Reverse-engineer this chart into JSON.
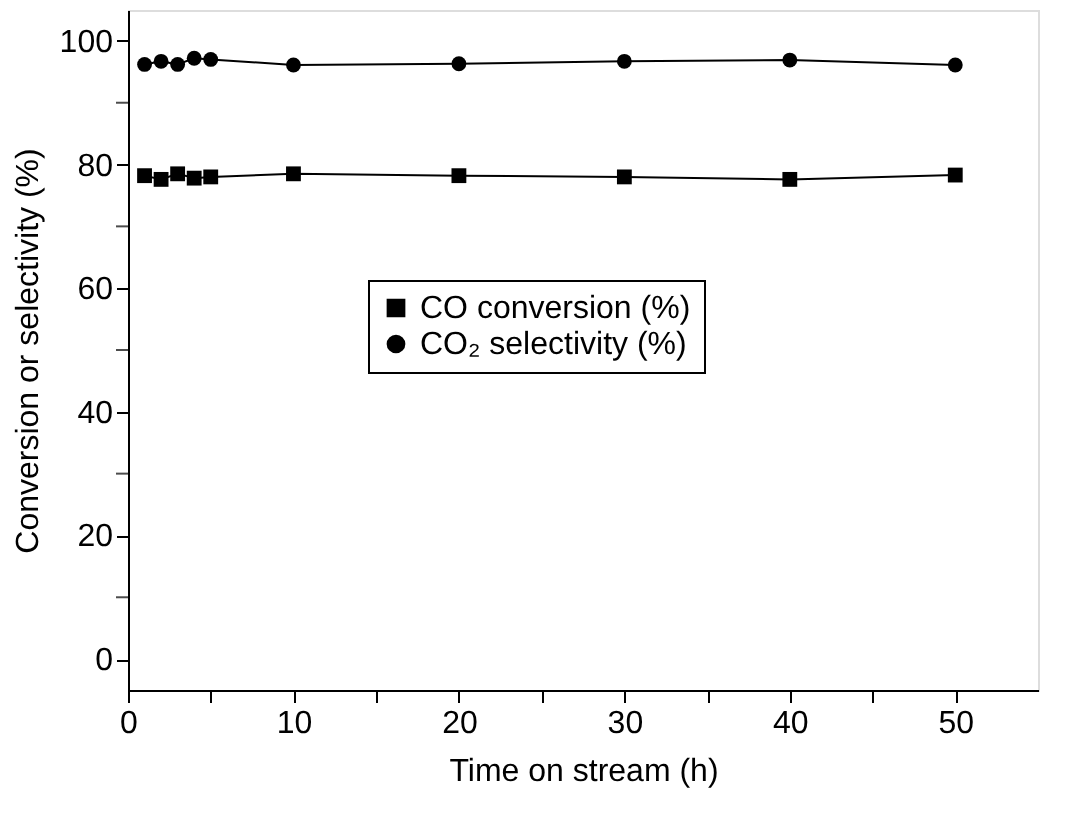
{
  "chart_data": {
    "type": "line",
    "xlabel": "Time on stream (h)",
    "ylabel": "Conversion or selectivity (%)",
    "x": [
      1,
      2,
      3,
      4,
      5,
      10,
      20,
      30,
      40,
      50
    ],
    "series": [
      {
        "name": "CO conversion (%)",
        "color": "#000000",
        "marker": "square",
        "values": [
          78.2,
          77.6,
          78.5,
          77.8,
          78.0,
          78.5,
          78.2,
          78.0,
          77.6,
          78.3
        ]
      },
      {
        "name": "CO₂ selectivity (%)",
        "color": "#000000",
        "marker": "circle",
        "values": [
          96.2,
          96.7,
          96.2,
          97.2,
          97.0,
          96.1,
          96.3,
          96.7,
          96.9,
          96.1
        ]
      }
    ],
    "xlim": [
      0,
      55
    ],
    "ylim": [
      -5,
      105
    ],
    "xticks": [
      0,
      {
        "value": 5,
        "label": null
      },
      10,
      {
        "value": 15,
        "label": null
      },
      20,
      {
        "value": 25,
        "label": null
      },
      30,
      {
        "value": 35,
        "label": null
      },
      40,
      {
        "value": 45,
        "label": null
      },
      50
    ],
    "yticks": [
      0,
      {
        "value": 10,
        "label": null
      },
      20,
      {
        "value": 30,
        "label": null
      },
      40,
      {
        "value": 50,
        "label": null
      },
      60,
      {
        "value": 70,
        "label": null
      },
      80,
      {
        "value": 90,
        "label": null
      },
      100
    ],
    "legend": "center",
    "grid": false,
    "line_style": "solid"
  }
}
